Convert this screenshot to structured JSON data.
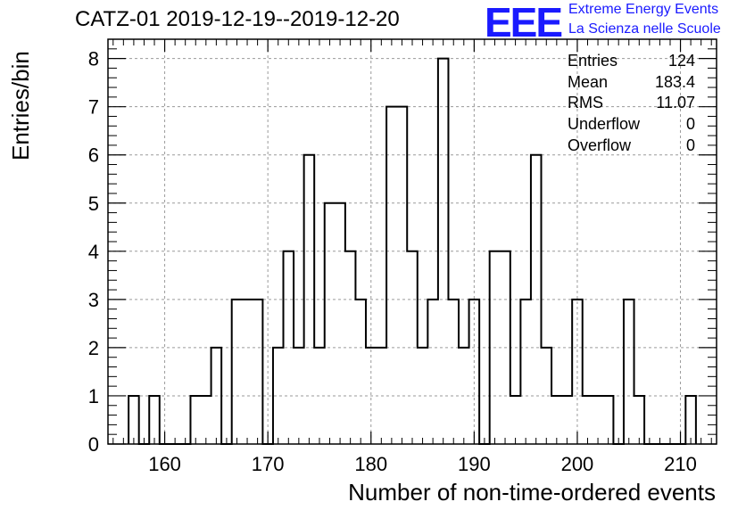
{
  "title": "CATZ-01 2019-12-19--2019-12-20",
  "logo": {
    "mark": "EEE",
    "line1": "Extreme Energy Events",
    "line2": "La Scienza nelle Scuole",
    "color": "#1a1aff"
  },
  "stats": [
    {
      "label": "Entries",
      "value": "124"
    },
    {
      "label": "Mean",
      "value": "183.4"
    },
    {
      "label": "RMS",
      "value": "11.07"
    },
    {
      "label": "Underflow",
      "value": "0"
    },
    {
      "label": "Overflow",
      "value": "0"
    }
  ],
  "chart_data": {
    "type": "bar",
    "title": "CATZ-01 2019-12-19--2019-12-20",
    "xlabel": "Number of non-time-ordered events",
    "ylabel": "Entries/bin",
    "xlim": [
      154.5,
      213.5
    ],
    "ylim": [
      0,
      8.4
    ],
    "x_ticks": [
      160,
      170,
      180,
      190,
      200,
      210
    ],
    "y_ticks": [
      0,
      1,
      2,
      3,
      4,
      5,
      6,
      7,
      8
    ],
    "grid": true,
    "bin_width": 1,
    "x": [
      157,
      159,
      163,
      164,
      165,
      167,
      168,
      169,
      171,
      172,
      173,
      174,
      175,
      176,
      177,
      178,
      179,
      180,
      181,
      182,
      183,
      184,
      185,
      186,
      187,
      188,
      189,
      190,
      192,
      193,
      194,
      195,
      196,
      197,
      198,
      199,
      200,
      201,
      202,
      203,
      205,
      206,
      211
    ],
    "values": [
      1,
      1,
      1,
      1,
      2,
      3,
      3,
      3,
      2,
      4,
      2,
      6,
      2,
      5,
      5,
      4,
      3,
      2,
      2,
      7,
      7,
      4,
      2,
      3,
      8,
      3,
      2,
      3,
      4,
      4,
      1,
      3,
      6,
      2,
      1,
      1,
      3,
      1,
      1,
      1,
      3,
      1,
      1
    ]
  }
}
